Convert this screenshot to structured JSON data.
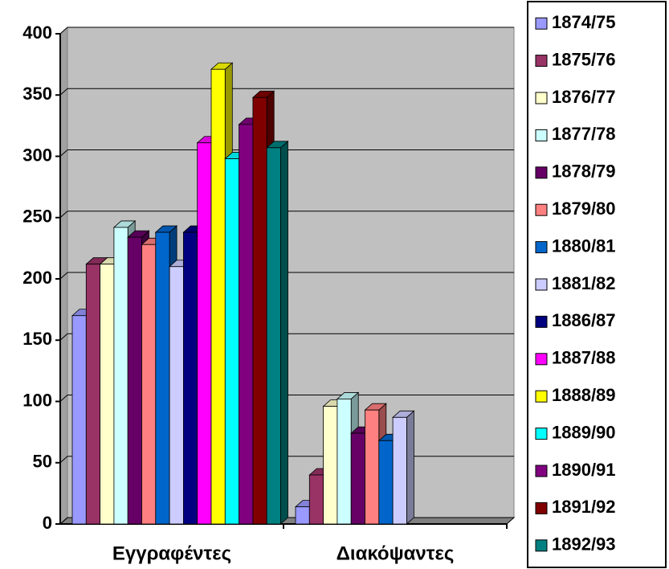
{
  "chart_data": {
    "type": "bar3d",
    "categories": [
      "Εγγραφέντες",
      "Διακόψαντες"
    ],
    "series": [
      {
        "name": "1874/75",
        "color": "#9999ff",
        "values": [
          170,
          14
        ]
      },
      {
        "name": "1875/76",
        "color": "#993366",
        "values": [
          212,
          40
        ]
      },
      {
        "name": "1876/77",
        "color": "#ffffcc",
        "values": [
          212,
          96
        ]
      },
      {
        "name": "1877/78",
        "color": "#ccffff",
        "values": [
          242,
          102
        ]
      },
      {
        "name": "1878/79",
        "color": "#660066",
        "values": [
          234,
          74
        ]
      },
      {
        "name": "1879/80",
        "color": "#ff8080",
        "values": [
          228,
          93
        ]
      },
      {
        "name": "1880/81",
        "color": "#0066cc",
        "values": [
          238,
          68
        ]
      },
      {
        "name": "1881/82",
        "color": "#ccccff",
        "values": [
          210,
          87
        ]
      },
      {
        "name": "1886/87",
        "color": "#000080",
        "values": [
          238,
          null
        ]
      },
      {
        "name": "1887/88",
        "color": "#ff00ff",
        "values": [
          311,
          null
        ]
      },
      {
        "name": "1888/89",
        "color": "#ffff00",
        "values": [
          371,
          null
        ]
      },
      {
        "name": "1889/90",
        "color": "#00ffff",
        "values": [
          298,
          null
        ]
      },
      {
        "name": "1890/91",
        "color": "#800080",
        "values": [
          326,
          null
        ]
      },
      {
        "name": "1891/92",
        "color": "#800000",
        "values": [
          348,
          null
        ]
      },
      {
        "name": "1892/93",
        "color": "#008080",
        "values": [
          307,
          null
        ]
      }
    ],
    "ylim": [
      0,
      400
    ],
    "yticks": [
      0,
      50,
      100,
      150,
      200,
      250,
      300,
      350,
      400
    ],
    "grid": true,
    "legend": "right"
  }
}
